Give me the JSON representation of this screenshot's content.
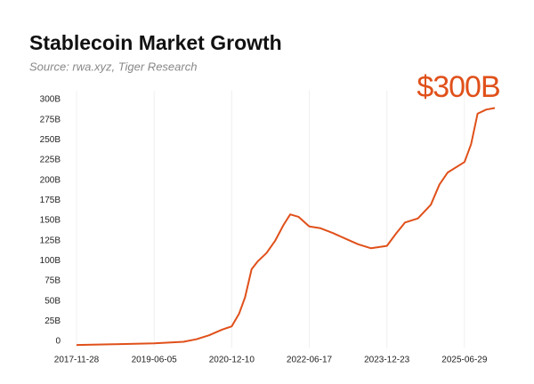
{
  "chart_data": {
    "type": "line",
    "title": "Stablecoin Market Growth",
    "subtitle": "Source: rwa.xyz, Tiger Research",
    "annotation": "$300B",
    "color": "#e0501a",
    "x": [
      "2017-11-28",
      "2018-09-01",
      "2019-06-05",
      "2020-01-01",
      "2020-04-01",
      "2020-07-01",
      "2020-10-01",
      "2020-12-10",
      "2021-02-01",
      "2021-03-15",
      "2021-05-01",
      "2021-06-15",
      "2021-08-15",
      "2021-10-15",
      "2021-12-15",
      "2022-02-01",
      "2022-04-01",
      "2022-06-17",
      "2022-09-01",
      "2022-12-01",
      "2023-03-01",
      "2023-06-01",
      "2023-09-01",
      "2023-12-23",
      "2024-03-01",
      "2024-05-01",
      "2024-08-01",
      "2024-11-01",
      "2025-01-01",
      "2025-03-01",
      "2025-06-29",
      "2025-08-15",
      "2025-10-01",
      "2025-12-01",
      "2026-02-01"
    ],
    "values": [
      1,
      2,
      3,
      5,
      8,
      13,
      20,
      24,
      40,
      60,
      95,
      105,
      115,
      130,
      150,
      163,
      160,
      148,
      146,
      140,
      133,
      126,
      121,
      124,
      140,
      153,
      158,
      175,
      200,
      215,
      228,
      250,
      288,
      293,
      295
    ],
    "xlim": [
      "2017-11-28",
      "2026-02-01"
    ],
    "xticks": [
      "2017-11-28",
      "2019-06-05",
      "2020-12-10",
      "2022-06-17",
      "2023-12-23",
      "2025-06-29"
    ],
    "ylim": [
      0,
      300
    ],
    "yticks": [
      0,
      {
        "value": 25,
        "label": "25B"
      },
      {
        "value": 50,
        "label": "50B"
      },
      {
        "value": 75,
        "label": "75B"
      },
      {
        "value": 100,
        "label": "100B"
      },
      {
        "value": 125,
        "label": "125B"
      },
      {
        "value": 150,
        "label": "150B"
      },
      {
        "value": 175,
        "label": "175B"
      },
      {
        "value": 200,
        "label": "200B"
      },
      {
        "value": 225,
        "label": "225B"
      },
      {
        "value": 250,
        "label": "250B"
      },
      {
        "value": 275,
        "label": "275B"
      },
      {
        "value": 300,
        "label": "300B"
      }
    ],
    "grid": true
  }
}
